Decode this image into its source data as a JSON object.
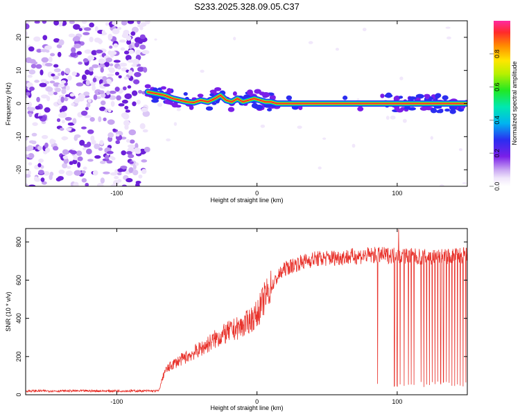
{
  "title": "S233.2025.328.09.05.C37",
  "chart_data": [
    {
      "type": "heatmap",
      "xlabel": "Height of straight line (km)",
      "ylabel": "Frequency (Hz)",
      "xlim": [
        -165,
        150
      ],
      "ylim": [
        -25,
        25
      ],
      "x_ticks": [
        -100,
        0,
        100
      ],
      "y_ticks": [
        -20,
        -10,
        0,
        10,
        20
      ],
      "noise_region": [
        -165,
        -78
      ],
      "ridge": {
        "x": [
          -78,
          -72,
          -66,
          -60,
          -55,
          -50,
          -45,
          -40,
          -35,
          -30,
          -26,
          -22,
          -18,
          -14,
          -10,
          -6,
          -2,
          2,
          6,
          10,
          14,
          20,
          40,
          60,
          80,
          90,
          100,
          110,
          120,
          130,
          140,
          150
        ],
        "y": [
          3.5,
          3,
          2.5,
          1.5,
          1,
          0.5,
          0.3,
          1,
          0.5,
          1.5,
          2.5,
          1,
          0.5,
          1.5,
          0.5,
          1,
          1.5,
          1,
          0.5,
          0.5,
          0,
          0,
          0,
          0,
          0,
          0,
          0,
          0,
          0,
          0,
          0,
          0
        ]
      },
      "colorbar": {
        "label": "Normalized spectral amplitude",
        "range": [
          0,
          1
        ],
        "ticks": [
          0.0,
          0.2,
          0.4,
          0.6,
          0.8
        ],
        "tick_labels": [
          "0.0",
          "0.2",
          "0.4",
          "0.6",
          "0.8"
        ]
      }
    },
    {
      "type": "line",
      "xlabel": "Height of straight line (km)",
      "ylabel": "SNR (10 * v/v)",
      "xlim": [
        -165,
        150
      ],
      "ylim": [
        0,
        870
      ],
      "x_ticks": [
        -100,
        0,
        100
      ],
      "y_ticks": [
        0,
        200,
        400,
        600,
        800
      ],
      "color": "#e8312a",
      "series_envelope": {
        "x": [
          -165,
          -100,
          -70,
          -66,
          -60,
          -50,
          -40,
          -30,
          -20,
          -10,
          0,
          5,
          10,
          15,
          20,
          30,
          40,
          60,
          80,
          100,
          120,
          150
        ],
        "y": [
          20,
          20,
          20,
          120,
          160,
          200,
          240,
          290,
          330,
          360,
          420,
          500,
          560,
          620,
          660,
          690,
          710,
          720,
          730,
          730,
          720,
          730
        ]
      },
      "dropouts_x": [
        86,
        98,
        100,
        102,
        105,
        108,
        110,
        112,
        117,
        119,
        121,
        123,
        125,
        127,
        129,
        131,
        133,
        135,
        137,
        139,
        141,
        143,
        145,
        147,
        149
      ],
      "spike": {
        "x": 101,
        "y": 865
      }
    }
  ]
}
